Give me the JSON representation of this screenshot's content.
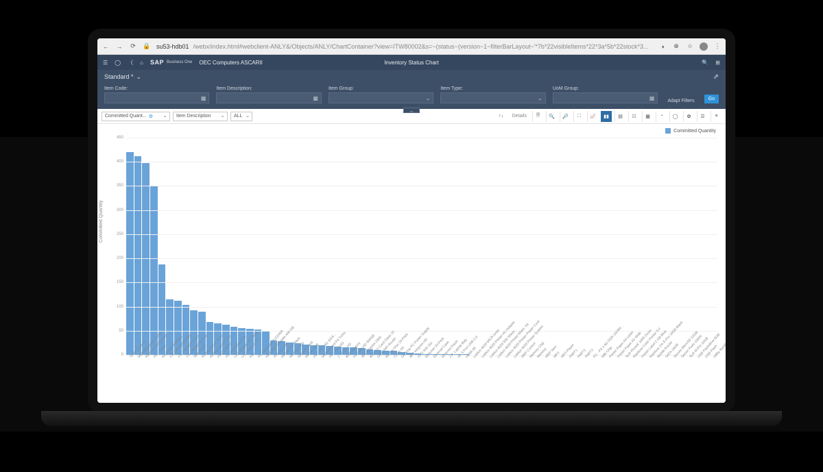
{
  "browser": {
    "host": "su53-hdb01",
    "path": "/webx/index.html#webclient-ANLY&/Objects/ANLY/ChartContainer?view=ITW80002&s=~(status~(version~1~filterBarLayout~'*7b*22visibleItems*22*3a*5b*22stock*3..."
  },
  "header": {
    "logo": "SAP",
    "sublogo": "Business\nOne",
    "company": "OEC Computers ASCARII",
    "title": "Inventory Status Chart"
  },
  "variant": {
    "name": "Standard *"
  },
  "filters": {
    "labels": {
      "code": "Item Code:",
      "desc": "Item Description:",
      "group": "Item Group:",
      "type": "Item Type:",
      "uom": "UoM Group:"
    },
    "adapt": "Adapt Filters",
    "go": "Go"
  },
  "toolbar": {
    "measure": "Committed Quant...",
    "dimension": "Item Description",
    "scope": "ALL",
    "details": "Details"
  },
  "chart": {
    "legend": "Committed Quantity",
    "ylabel": "Committed Quantity",
    "ymax": 450,
    "ytick_step": 50,
    "bar_color": "#6aa3d8",
    "grid_color": "#f0f0f0",
    "background": "#ffffff",
    "bars": [
      {
        "label": "Tower Case w...",
        "v": 420
      },
      {
        "label": "Motherboard w/ Turbo",
        "v": 412
      },
      {
        "label": "Rainbox 1200 Laser...",
        "v": 398
      },
      {
        "label": "PC - Turbo",
        "v": 350
      },
      {
        "label": "Keyboard Wireless",
        "v": 188
      },
      {
        "label": "J.B. Officeprint 1420",
        "v": 115
      },
      {
        "label": "J.B. Officeprint 1111",
        "v": 112
      },
      {
        "label": "J.B. Officeprint 1186",
        "v": 103
      },
      {
        "label": "Side Panel",
        "v": 92
      },
      {
        "label": "Rolling Server 4500",
        "v": 90
      },
      {
        "label": "Rolling Server X111",
        "v": 68
      },
      {
        "label": "PCU 2.4GHz",
        "v": 66
      },
      {
        "label": "PCU Processor Kit",
        "v": 62
      },
      {
        "label": "LCD Display 19\" Wide",
        "v": 58
      },
      {
        "label": "LCD Display 22\"",
        "v": 55
      },
      {
        "label": "Fan",
        "v": 54
      },
      {
        "label": "PC Keyboard B122/400",
        "v": 52
      },
      {
        "label": "Hard Disk Seagate 400 GB",
        "v": 50
      },
      {
        "label": "Printer Label",
        "v": 30
      },
      {
        "label": "Mouse Pad Black",
        "v": 28
      },
      {
        "label": "Memory Chip",
        "v": 26
      },
      {
        "label": "Network Card",
        "v": 24
      },
      {
        "label": "Mouse USB",
        "v": 22
      },
      {
        "label": "PC - P4 2.4G 1024...",
        "v": 20
      },
      {
        "label": "Motherboard P4 Turbo",
        "v": 20
      },
      {
        "label": "PC - P4 3.0G",
        "v": 18
      },
      {
        "label": "1 TB Ext HD",
        "v": 17
      },
      {
        "label": "8GB Memory",
        "v": 16
      },
      {
        "label": "Portable HD 500GB",
        "v": 15
      },
      {
        "label": "IBM Infoprint 1000",
        "v": 14
      },
      {
        "label": "8GB SD Card Class 10",
        "v": 12
      },
      {
        "label": "DGN WiFi Router",
        "v": 10
      },
      {
        "label": "Blu-ray Disc 10-Pack",
        "v": 9
      },
      {
        "label": "Cable Kit",
        "v": 8
      },
      {
        "label": "Desktop PC Power Supply",
        "v": 6
      },
      {
        "label": "IBM Infoprint HD",
        "v": 4
      },
      {
        "label": "DVD RW 16x",
        "v": 3
      },
      {
        "label": "Ethernet 10-Pack",
        "v": 2
      },
      {
        "label": "External Case",
        "v": 2
      },
      {
        "label": "Ethernet Patch",
        "v": 1
      },
      {
        "label": "J.B. Laptop Bag",
        "v": 1
      },
      {
        "label": "4G A Port USB 2.0",
        "v": 1
      },
      {
        "label": "HDMI 6ft",
        "v": 1
      },
      {
        "label": "LeMon 4029 MICR toner",
        "v": 0
      },
      {
        "label": "LeMon 4029 Printer AC Adapter",
        "v": 0
      },
      {
        "label": "LeMon 4029 500 Sheet...",
        "v": 0
      },
      {
        "label": "LeMon 4029 Printer Maint. Kit",
        "v": 0
      },
      {
        "label": "LeMon 4029 Printer Power Cord",
        "v": 0
      },
      {
        "label": "LeMon 4029 Printer System",
        "v": 0
      },
      {
        "label": "MRP Control",
        "v": 0
      },
      {
        "label": "Memory Chip",
        "v": 0
      },
      {
        "label": "Memory",
        "v": 0
      },
      {
        "label": "MRP Item",
        "v": 0
      },
      {
        "label": "MP3",
        "v": 0
      },
      {
        "label": "MP3 Player",
        "v": 0
      },
      {
        "label": "PART1",
        "v": 0
      },
      {
        "label": "PART2",
        "v": 0
      },
      {
        "label": "PART3",
        "v": 0
      },
      {
        "label": "PC - P4 2.4G DDR 1024M...",
        "v": 0
      },
      {
        "label": "Milk Chip",
        "v": 0
      },
      {
        "label": "Printer Paper A4 Letter",
        "v": 0
      },
      {
        "label": "Printer Paper A3 Wide",
        "v": 0
      },
      {
        "label": "SLR PhotoE 1600 Zoom",
        "v": 0
      },
      {
        "label": "Rainbow Color Printer 5.0",
        "v": 0
      },
      {
        "label": "Printer Label 2 GB Blue",
        "v": 0
      },
      {
        "label": "Rainbow 1% E-Pro 16GB Black",
        "v": 0
      },
      {
        "label": "Mobile Router",
        "v": 0
      },
      {
        "label": "SATA 16GB",
        "v": 0
      },
      {
        "label": "Secure MicroSD 32GB",
        "v": 0
      },
      {
        "label": "Server Point 10000",
        "v": 0
      },
      {
        "label": "SLR M-Pro 16GB",
        "v": 0
      },
      {
        "label": "USB Flashdrive 8GB",
        "v": 0
      },
      {
        "label": "USB Flash",
        "v": 0
      },
      {
        "label": "Utility Bundle server",
        "v": 0
      }
    ]
  }
}
